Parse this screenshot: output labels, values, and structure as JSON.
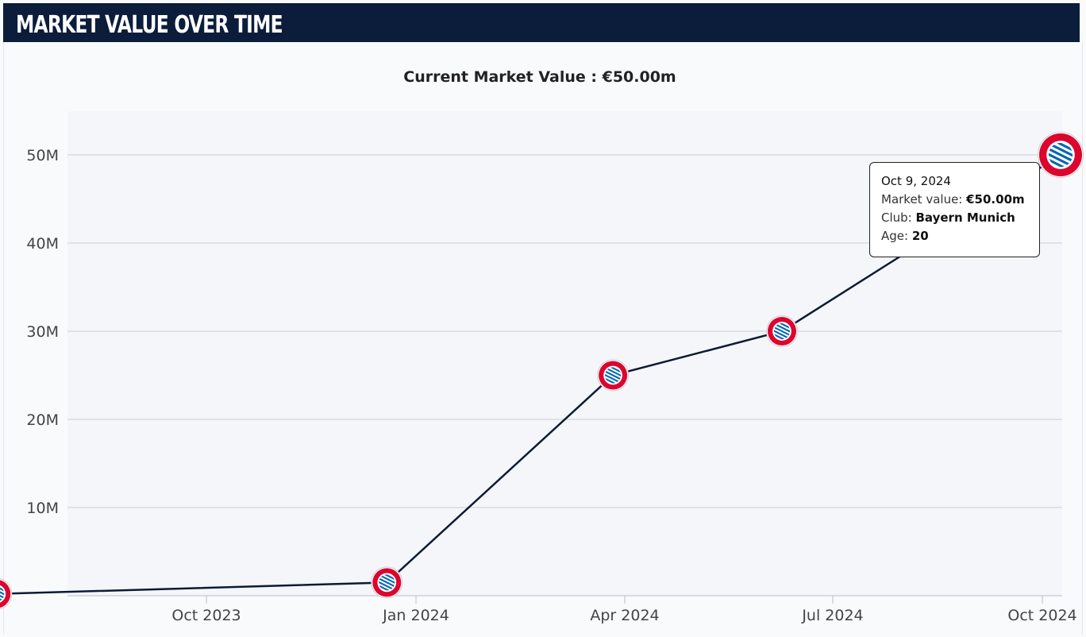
{
  "header": {
    "title": "MARKET VALUE OVER TIME"
  },
  "subtitle": "Current Market Value : €50.00m",
  "tooltip": {
    "date": "Oct 9, 2024",
    "market_label": "Market value: ",
    "market_value": "€50.00m",
    "club_label": "Club: ",
    "club_value": "Bayern Munich",
    "age_label": "Age: ",
    "age_value": "20"
  },
  "colors": {
    "header": "#0c1c3b",
    "line": "#0e1a33",
    "grid": "#c9ced6",
    "marker": "#dc052d"
  },
  "chart_data": {
    "type": "line",
    "title": "Current Market Value : €50.00m",
    "xlabel": "",
    "ylabel": "",
    "x_ticks": [
      "Oct 2023",
      "Jan 2024",
      "Apr 2024",
      "Jul 2024",
      "Oct 2024"
    ],
    "y_ticks": [
      "10M",
      "20M",
      "30M",
      "40M",
      "50M"
    ],
    "ylim": [
      0,
      50
    ],
    "grid": true,
    "marker_icon": "bayern-munich-crest",
    "points": [
      {
        "date": "2023-07-01",
        "value": 0.2
      },
      {
        "date": "2023-12-19",
        "value": 1.5
      },
      {
        "date": "2024-03-27",
        "value": 25
      },
      {
        "date": "2024-06-09",
        "value": 30
      },
      {
        "date": "2024-10-09",
        "value": 50
      }
    ]
  }
}
